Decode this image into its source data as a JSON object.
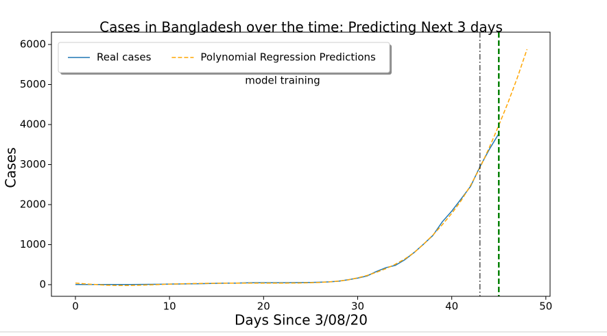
{
  "chart_data": {
    "type": "line",
    "title": "Cases in Bangladesh over the time: Predicting Next 3 days",
    "x_label": "Days Since 3/08/20",
    "y_label": "Cases",
    "annotation": "model training",
    "x": [
      0,
      1,
      2,
      3,
      4,
      5,
      6,
      7,
      8,
      9,
      10,
      11,
      12,
      13,
      14,
      15,
      16,
      17,
      18,
      19,
      20,
      21,
      22,
      23,
      24,
      25,
      26,
      27,
      28,
      29,
      30,
      31,
      32,
      33,
      34,
      35,
      36,
      37,
      38,
      39,
      40,
      41,
      42,
      43,
      44,
      45,
      46,
      47,
      48
    ],
    "series": [
      {
        "name": "Real cases",
        "color": "#1f77b4",
        "linestyle": "solid",
        "values": [
          3,
          3,
          3,
          3,
          3,
          3,
          3,
          5,
          8,
          10,
          14,
          17,
          20,
          24,
          27,
          33,
          39,
          39,
          44,
          48,
          48,
          48,
          49,
          51,
          54,
          56,
          61,
          70,
          88,
          123,
          164,
          218,
          330,
          424,
          482,
          621,
          803,
          1012,
          1231,
          1572,
          1838,
          2144,
          2456,
          2948,
          3382,
          3772,
          null,
          null,
          null
        ]
      },
      {
        "name": "Polynomial Regression Predictions",
        "color": "orange",
        "linestyle": "dashed",
        "values": [
          40,
          20,
          5,
          -10,
          -18,
          -20,
          -18,
          -12,
          -5,
          5,
          12,
          20,
          25,
          30,
          33,
          35,
          37,
          38,
          38,
          38,
          38,
          38,
          38,
          40,
          42,
          48,
          55,
          70,
          90,
          120,
          170,
          230,
          310,
          400,
          510,
          640,
          800,
          1010,
          1240,
          1500,
          1780,
          2100,
          2480,
          2920,
          3430,
          3980,
          4560,
          5190,
          5880
        ]
      }
    ],
    "vlines": [
      {
        "x": 43,
        "color": "black",
        "linestyle": "dashdot"
      },
      {
        "x": 45,
        "color": "green",
        "linestyle": "dashed"
      }
    ],
    "xlim": [
      -2.55,
      50.45
    ],
    "xticks": [
      0,
      10,
      20,
      30,
      40,
      50
    ],
    "ylim": [
      -291,
      6308
    ],
    "yticks": [
      0,
      1000,
      2000,
      3000,
      4000,
      5000,
      6000
    ],
    "legend": "upper left"
  }
}
